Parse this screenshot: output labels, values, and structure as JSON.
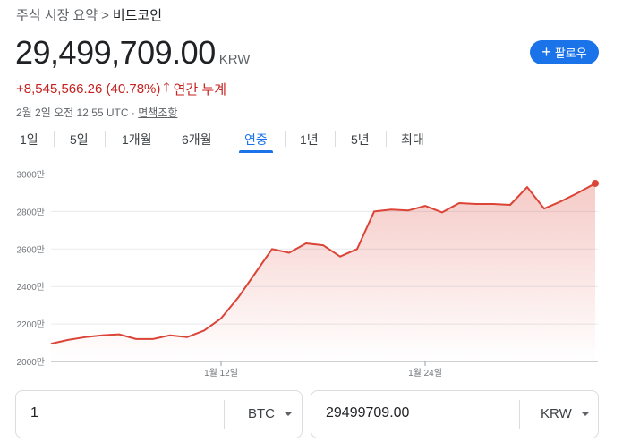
{
  "breadcrumb": {
    "parent": "주식 시장 요약",
    "separator": ">",
    "current": "비트코인"
  },
  "quote": {
    "price": "29,499,709.00",
    "currency": "KRW",
    "change": "+8,545,566.26 (40.78%)",
    "change_period": "연간 누계",
    "timestamp": "2월 2일 오전 12:55 UTC",
    "dot": "·",
    "disclaimer": "면책조항"
  },
  "follow_button": {
    "label": "팔로우"
  },
  "tabs": [
    {
      "label": "1일",
      "active": false
    },
    {
      "label": "5일",
      "active": false
    },
    {
      "label": "1개월",
      "active": false
    },
    {
      "label": "6개월",
      "active": false
    },
    {
      "label": "연중",
      "active": true
    },
    {
      "label": "1년",
      "active": false
    },
    {
      "label": "5년",
      "active": false
    },
    {
      "label": "최대",
      "active": false
    }
  ],
  "colors": {
    "line": "#db4437",
    "accent": "#1a73e8",
    "negative": "#c5221f",
    "grid": "#e8eaed"
  },
  "chart_data": {
    "type": "area",
    "y_tick_labels": [
      "3000만",
      "2800만",
      "2600만",
      "2400만",
      "2200만",
      "2000만"
    ],
    "y_ticks": [
      30000000,
      28000000,
      26000000,
      24000000,
      22000000,
      20000000
    ],
    "ylim": [
      20000000,
      30500000
    ],
    "x_tick_labels": [
      "1월 12일",
      "1월 24일"
    ],
    "x_tick_index": [
      10,
      22
    ],
    "values": [
      20950000,
      21150000,
      21300000,
      21400000,
      21450000,
      21200000,
      21200000,
      21400000,
      21300000,
      21650000,
      22300000,
      23400000,
      24700000,
      26000000,
      25800000,
      26300000,
      26200000,
      25600000,
      26000000,
      28000000,
      28100000,
      28050000,
      28300000,
      27950000,
      28450000,
      28400000,
      28400000,
      28350000,
      29300000,
      28150000,
      28550000,
      29000000,
      29499709
    ]
  },
  "converter": {
    "from_value": "1",
    "from_currency": "BTC",
    "to_value": "29499709.00",
    "to_currency": "KRW"
  }
}
